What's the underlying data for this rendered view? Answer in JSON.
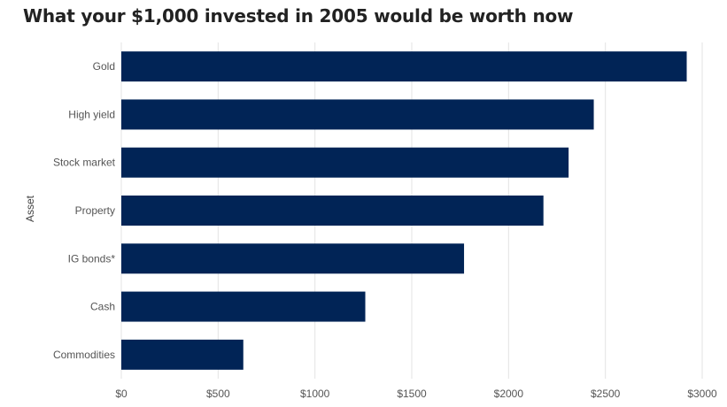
{
  "title": "What your $1,000 invested in 2005 would be worth now",
  "chart_data": {
    "type": "bar",
    "orientation": "horizontal",
    "title": "What your $1,000 invested in 2005 would be worth now",
    "ylabel": "Asset",
    "xlabel": "",
    "categories": [
      "Gold",
      "High yield",
      "Stock market",
      "Property",
      "IG bonds*",
      "Cash",
      "Commodities"
    ],
    "values": [
      2920,
      2440,
      2310,
      2180,
      1770,
      1260,
      630
    ],
    "xlim": [
      0,
      3000
    ],
    "ticks": [
      0,
      500,
      1000,
      1500,
      2000,
      2500,
      3000
    ],
    "tick_labels": [
      "$0",
      "$500",
      "$1000",
      "$1500",
      "$2000",
      "$2500",
      "$3000"
    ],
    "grid": true,
    "bar_color": "#012456",
    "grid_color": "#e3e3e3"
  }
}
